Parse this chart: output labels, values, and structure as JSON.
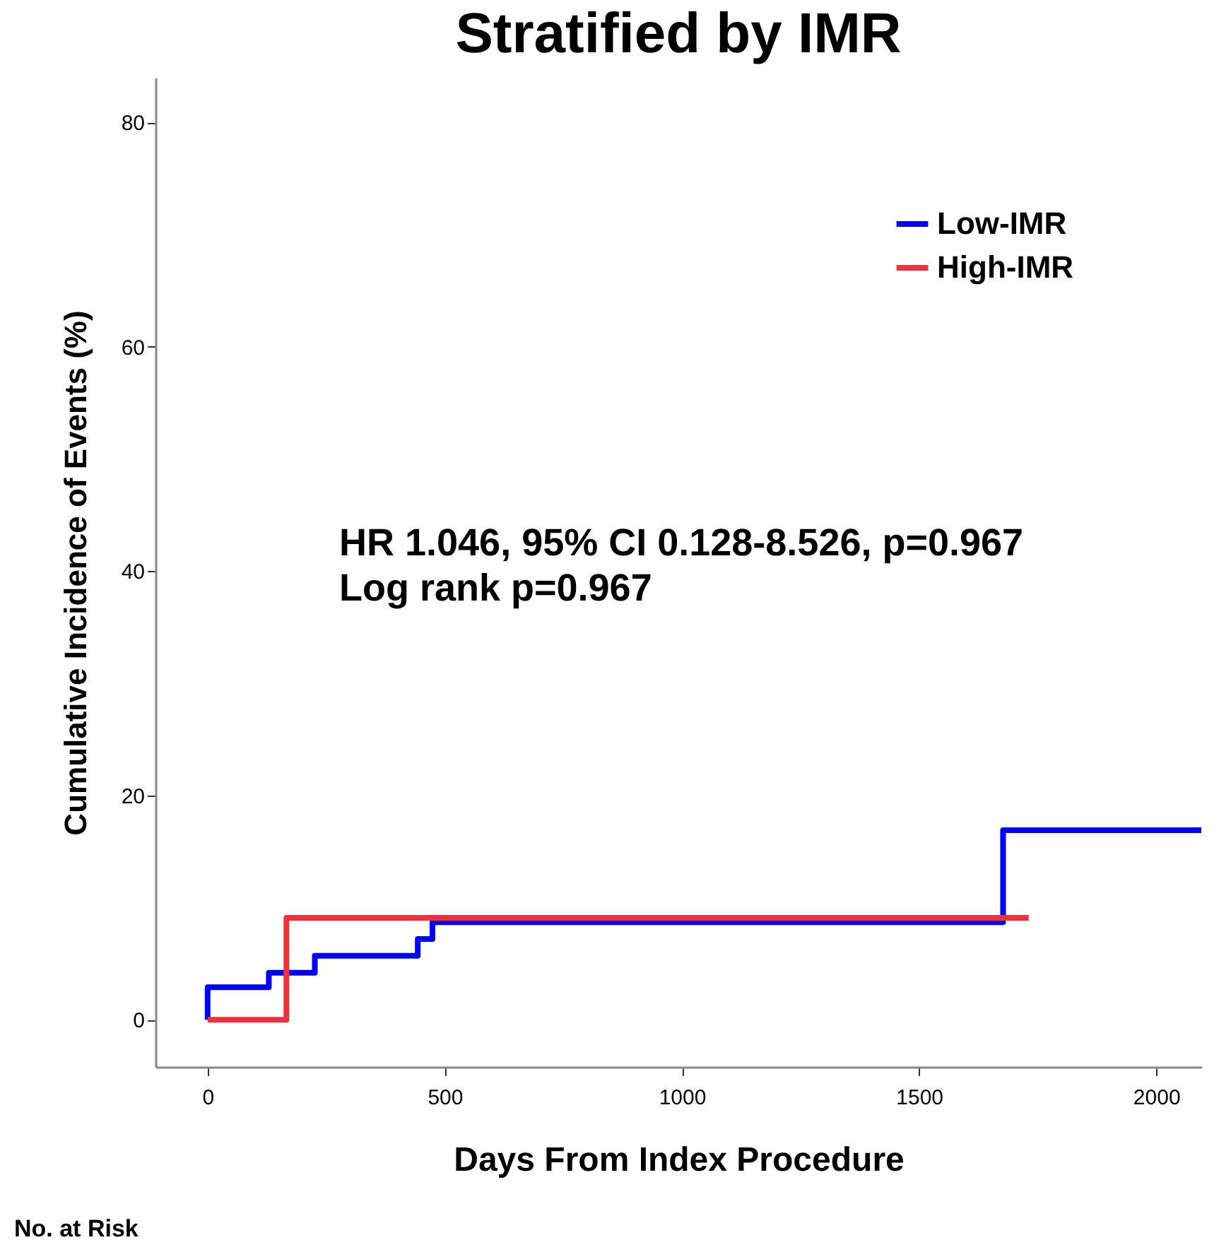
{
  "chart_data": {
    "type": "step",
    "title": "Stratified by IMR",
    "xlabel": "Days From Index Procedure",
    "ylabel": "Cumulative Incidence of Events (%)",
    "xlim": [
      -110,
      2095
    ],
    "xticks": [
      0,
      500,
      1000,
      1500,
      2000
    ],
    "ylim": [
      -4.2,
      84
    ],
    "yticks": [
      0,
      20,
      40,
      60,
      80
    ],
    "grid": false,
    "legend": "top right",
    "line_style": "solid",
    "marker": "none",
    "series": [
      {
        "name": "Low-IMR",
        "color": "#0000ff",
        "x": [
          0,
          0,
          129,
          226,
          443,
          474,
          1677,
          2095
        ],
        "values": [
          0,
          2.9,
          4.2,
          5.7,
          7.2,
          8.7,
          16.9,
          16.9
        ]
      },
      {
        "name": "High-IMR",
        "color": "#f0303c",
        "x": [
          0,
          166,
          1731
        ],
        "values": [
          0,
          9.1,
          9.1
        ]
      }
    ],
    "annotations": [
      "HR 1.046, 95% CI 0.128-8.526, p=0.967",
      "Log rank p=0.967",
      "No. at Risk"
    ]
  }
}
